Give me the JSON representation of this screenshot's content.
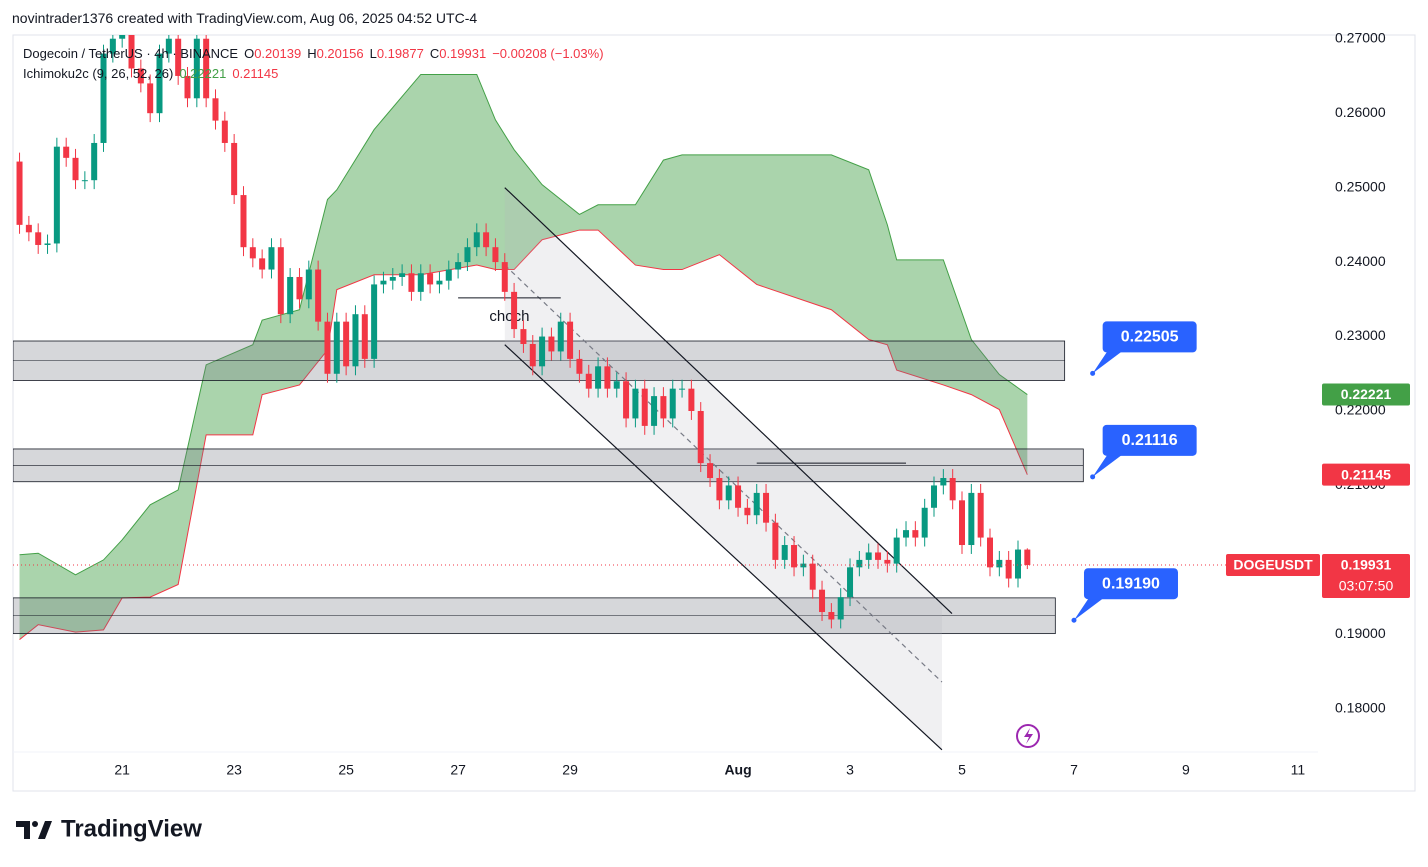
{
  "header": {
    "credit": "novintrader1376 created with TradingView.com, Aug 06, 2025 04:52 UTC-4",
    "symbol": "Dogecoin / TetherUS · 4h · BINANCE",
    "ohlc_labels": [
      "O",
      "H",
      "L",
      "C"
    ],
    "change": "−0.00208 (−1.03%)",
    "indicator": "Ichimoku2c (9, 26, 52, 26)"
  },
  "chart_data": {
    "type": "candlestick",
    "x": [
      4,
      8,
      12,
      16,
      20,
      24,
      28,
      32,
      36,
      40,
      44,
      48,
      52,
      56,
      60,
      64,
      68,
      72,
      76,
      80,
      84,
      88,
      92,
      96,
      100,
      104,
      108,
      112,
      116,
      120,
      124,
      128,
      132,
      136,
      140,
      144,
      148,
      152,
      156,
      160,
      164,
      168,
      172,
      176,
      180,
      184,
      188,
      192,
      196,
      200,
      204,
      208,
      212,
      216,
      220,
      224,
      228,
      232,
      236,
      240,
      244,
      248,
      252,
      256,
      260,
      264,
      268,
      272,
      276,
      280,
      284,
      288,
      292,
      296,
      300,
      304,
      308,
      312,
      316,
      320,
      324,
      328,
      332,
      336,
      340,
      344,
      348,
      352,
      356,
      360,
      364,
      368,
      372,
      376,
      380,
      384,
      388,
      392,
      396,
      400,
      404,
      408,
      412,
      416,
      420,
      424,
      428,
      432,
      436
    ],
    "open": [
      0.2535,
      0.245,
      0.244,
      0.2423,
      0.2425,
      0.2555,
      0.254,
      0.251,
      0.251,
      0.256,
      0.268,
      0.27,
      0.271,
      0.266,
      0.264,
      0.26,
      0.268,
      0.27,
      0.265,
      0.262,
      0.27,
      0.262,
      0.259,
      0.256,
      0.249,
      0.242,
      0.2405,
      0.239,
      0.242,
      0.233,
      0.238,
      0.235,
      0.239,
      0.232,
      0.225,
      0.232,
      0.226,
      0.233,
      0.227,
      0.237,
      0.2375,
      0.238,
      0.2385,
      0.236,
      0.2385,
      0.237,
      0.2375,
      0.239,
      0.24,
      0.242,
      0.244,
      0.242,
      0.24,
      0.236,
      0.231,
      0.229,
      0.226,
      0.23,
      0.228,
      0.232,
      0.227,
      0.225,
      0.223,
      0.226,
      0.223,
      0.224,
      0.219,
      0.223,
      0.218,
      0.222,
      0.219,
      0.223,
      0.223,
      0.22,
      0.213,
      0.211,
      0.208,
      0.21,
      0.207,
      0.206,
      0.209,
      0.205,
      0.2,
      0.202,
      0.199,
      0.1995,
      0.196,
      0.193,
      0.192,
      0.195,
      0.199,
      0.2,
      0.201,
      0.2,
      0.1995,
      0.203,
      0.204,
      0.203,
      0.207,
      0.21,
      0.211,
      0.208,
      0.202,
      0.209,
      0.203,
      0.199,
      0.2,
      0.1975,
      0.20139
    ],
    "high": [
      0.2547,
      0.2462,
      0.2452,
      0.2437,
      0.2567,
      0.2567,
      0.2552,
      0.2522,
      0.2572,
      0.2692,
      0.2712,
      0.2722,
      0.2722,
      0.2672,
      0.2652,
      0.2692,
      0.2712,
      0.2712,
      0.2662,
      0.2712,
      0.2712,
      0.2632,
      0.2602,
      0.2572,
      0.2502,
      0.2432,
      0.2417,
      0.2432,
      0.2432,
      0.2392,
      0.2392,
      0.2402,
      0.2402,
      0.2332,
      0.2332,
      0.2332,
      0.2342,
      0.2342,
      0.2382,
      0.2387,
      0.2392,
      0.2397,
      0.2397,
      0.2397,
      0.2397,
      0.2387,
      0.2402,
      0.2412,
      0.2432,
      0.2452,
      0.2452,
      0.2432,
      0.2412,
      0.2372,
      0.2322,
      0.2302,
      0.2312,
      0.2312,
      0.2332,
      0.2332,
      0.2282,
      0.2262,
      0.2272,
      0.2272,
      0.2252,
      0.2252,
      0.2242,
      0.2242,
      0.2232,
      0.2232,
      0.2242,
      0.2242,
      0.2242,
      0.2212,
      0.2142,
      0.2122,
      0.2112,
      0.2112,
      0.2082,
      0.2102,
      0.2102,
      0.2062,
      0.2032,
      0.2032,
      0.2007,
      0.2007,
      0.1972,
      0.1942,
      0.1962,
      0.2002,
      0.2012,
      0.2022,
      0.2022,
      0.2012,
      0.2042,
      0.2052,
      0.2052,
      0.2082,
      0.2112,
      0.2122,
      0.2122,
      0.2092,
      0.2102,
      0.2102,
      0.2042,
      0.2012,
      0.2012,
      0.2026,
      0.20156
    ],
    "low": [
      0.2438,
      0.2428,
      0.2411,
      0.2411,
      0.2413,
      0.2528,
      0.2498,
      0.2498,
      0.2498,
      0.2548,
      0.2668,
      0.2688,
      0.2648,
      0.2628,
      0.2588,
      0.2588,
      0.2668,
      0.2638,
      0.2608,
      0.2608,
      0.2608,
      0.2578,
      0.2548,
      0.2478,
      0.2408,
      0.2393,
      0.2378,
      0.2378,
      0.2318,
      0.2318,
      0.2338,
      0.2338,
      0.2308,
      0.2238,
      0.2238,
      0.2248,
      0.2248,
      0.2258,
      0.2258,
      0.2358,
      0.2363,
      0.2368,
      0.2348,
      0.2348,
      0.2358,
      0.2358,
      0.2363,
      0.2378,
      0.2388,
      0.2408,
      0.2408,
      0.2388,
      0.2348,
      0.2298,
      0.2278,
      0.2248,
      0.2248,
      0.2268,
      0.2268,
      0.2258,
      0.2238,
      0.2218,
      0.2218,
      0.2218,
      0.2218,
      0.2178,
      0.2178,
      0.2168,
      0.2168,
      0.2178,
      0.2178,
      0.2218,
      0.2188,
      0.2118,
      0.2098,
      0.2068,
      0.2068,
      0.2058,
      0.2048,
      0.2048,
      0.2038,
      0.1988,
      0.1988,
      0.1978,
      0.1978,
      0.1948,
      0.1918,
      0.1908,
      0.1908,
      0.1938,
      0.1978,
      0.1988,
      0.1988,
      0.1983,
      0.1983,
      0.2018,
      0.2018,
      0.2018,
      0.2058,
      0.2088,
      0.2068,
      0.2008,
      0.2008,
      0.2018,
      0.1978,
      0.1978,
      0.1963,
      0.1963,
      0.19877
    ],
    "close": [
      0.245,
      0.244,
      0.2423,
      0.2425,
      0.2555,
      0.254,
      0.251,
      0.251,
      0.256,
      0.268,
      0.27,
      0.271,
      0.266,
      0.264,
      0.26,
      0.268,
      0.27,
      0.265,
      0.262,
      0.27,
      0.262,
      0.259,
      0.256,
      0.249,
      0.242,
      0.2405,
      0.239,
      0.242,
      0.233,
      0.238,
      0.235,
      0.239,
      0.232,
      0.225,
      0.232,
      0.226,
      0.233,
      0.227,
      0.237,
      0.2375,
      0.238,
      0.2385,
      0.236,
      0.2385,
      0.237,
      0.2375,
      0.239,
      0.24,
      0.242,
      0.244,
      0.242,
      0.24,
      0.236,
      0.231,
      0.229,
      0.226,
      0.23,
      0.228,
      0.232,
      0.227,
      0.225,
      0.223,
      0.226,
      0.223,
      0.224,
      0.219,
      0.223,
      0.218,
      0.222,
      0.219,
      0.223,
      0.223,
      0.22,
      0.213,
      0.211,
      0.208,
      0.21,
      0.207,
      0.206,
      0.209,
      0.205,
      0.2,
      0.202,
      0.199,
      0.1995,
      0.196,
      0.193,
      0.192,
      0.195,
      0.199,
      0.2,
      0.201,
      0.2,
      0.1995,
      0.203,
      0.204,
      0.203,
      0.207,
      0.21,
      0.211,
      0.208,
      0.202,
      0.209,
      0.203,
      0.199,
      0.2,
      0.1975,
      0.20139,
      0.19931
    ],
    "up_color": "#089981",
    "down_color": "#f23645",
    "xlim": [
      1.2,
      560.6
    ],
    "xticks": [
      {
        "value": 48,
        "label": "21"
      },
      {
        "value": 96,
        "label": "23"
      },
      {
        "value": 144,
        "label": "25"
      },
      {
        "value": 192,
        "label": "27"
      },
      {
        "value": 240,
        "label": "29"
      },
      {
        "value": 312,
        "label": "Aug"
      },
      {
        "value": 360,
        "label": "3"
      },
      {
        "value": 408,
        "label": "5"
      },
      {
        "value": 456,
        "label": "7"
      },
      {
        "value": 504,
        "label": "9"
      },
      {
        "value": 552,
        "label": "11"
      }
    ],
    "ylim": [
      0.1742,
      0.2705
    ],
    "yticks": [
      {
        "value": 0.27,
        "label": "0.27000"
      },
      {
        "value": 0.26,
        "label": "0.26000"
      },
      {
        "value": 0.25,
        "label": "0.25000"
      },
      {
        "value": 0.24,
        "label": "0.24000"
      },
      {
        "value": 0.23,
        "label": "0.23000"
      },
      {
        "value": 0.22,
        "label": "0.22000"
      },
      {
        "value": 0.21,
        "label": "0.21000"
      },
      {
        "value": 0.2,
        "label": "0.20000"
      },
      {
        "value": 0.19,
        "label": "0.19000"
      },
      {
        "value": 0.18,
        "label": "0.18000"
      }
    ],
    "grid": false,
    "ichimoku": {
      "x": [
        4,
        12,
        28,
        40,
        48,
        60,
        72,
        84,
        104,
        108,
        124,
        136,
        140,
        156,
        176,
        200,
        208,
        216,
        228,
        244,
        252,
        268,
        280,
        288,
        304,
        320,
        352,
        368,
        376,
        380,
        400,
        412,
        424,
        436
      ],
      "span_a": [
        0.2007,
        0.2009,
        0.198,
        0.2,
        0.2027,
        0.2074,
        0.2094,
        0.2262,
        0.2289,
        0.2322,
        0.2336,
        0.2484,
        0.2497,
        0.2578,
        0.2652,
        0.2652,
        0.2591,
        0.2551,
        0.2504,
        0.2464,
        0.2477,
        0.2477,
        0.2537,
        0.2544,
        0.2544,
        0.2544,
        0.2544,
        0.2524,
        0.245,
        0.2403,
        0.2403,
        0.2296,
        0.2249,
        0.22221
      ],
      "span_b": [
        0.1893,
        0.1913,
        0.1903,
        0.1906,
        0.1949,
        0.195,
        0.1967,
        0.2168,
        0.2168,
        0.2222,
        0.2235,
        0.2282,
        0.2363,
        0.2383,
        0.2383,
        0.2396,
        0.239,
        0.239,
        0.243,
        0.2443,
        0.2443,
        0.2396,
        0.239,
        0.239,
        0.241,
        0.237,
        0.2336,
        0.2296,
        0.2289,
        0.2255,
        0.2235,
        0.2222,
        0.2202,
        0.21145
      ],
      "color_a": "#43a047",
      "color_b": "#f23645",
      "fill": "rgba(67,160,71,0.45)"
    },
    "symbol_tag": "DOGEUSDT",
    "countdown": "03:07:50",
    "zones": [
      {
        "top": 0.2294,
        "bottom": 0.2241,
        "x_end": 452
      },
      {
        "top": 0.2149,
        "bottom": 0.2105,
        "x_end": 460
      },
      {
        "top": 0.1949,
        "bottom": 0.1901,
        "x_end": 448
      }
    ],
    "channel": {
      "upper": {
        "x": [
          212,
          403.7
        ],
        "y": [
          0.25,
          0.1928
        ]
      },
      "lower": {
        "x": [
          212,
          399.4
        ],
        "y": [
          0.2289,
          0.1745
        ]
      },
      "middle": {
        "x": [
          212,
          399.4
        ],
        "y": [
          0.2396,
          0.1836
        ]
      }
    },
    "lines": [
      {
        "x": [
          192,
          236
        ],
        "y": 0.2352,
        "label": "choch"
      },
      {
        "x": [
          320,
          384
        ],
        "y": 0.213
      }
    ],
    "annotations": [
      {
        "x": 464,
        "value": 0.22505,
        "label": "0.22505"
      },
      {
        "x": 464,
        "value": 0.21116,
        "label": "0.21116"
      },
      {
        "x": 456,
        "value": 0.1919,
        "label": "0.19190"
      }
    ]
  },
  "footer": {
    "brand": "TradingView"
  }
}
